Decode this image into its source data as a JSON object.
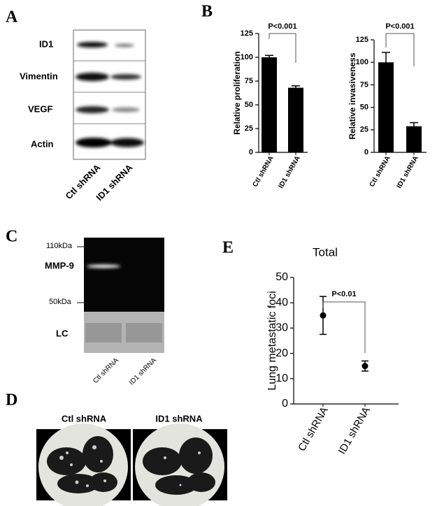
{
  "panel_labels": [
    "A",
    "B",
    "C",
    "D",
    "E"
  ],
  "blot_a": {
    "rows": [
      "ID1",
      "Vimentin",
      "VEGF",
      "Actin"
    ],
    "lanes": [
      "Ctl shRNA",
      "ID1 shRNA"
    ]
  },
  "blot_c": {
    "markers": [
      "110kDa",
      "50kDa"
    ],
    "bands": [
      "MMP-9",
      "LC"
    ],
    "lanes": [
      "Ctl shRNA",
      "ID1 shRNA"
    ]
  },
  "photos_d": {
    "lanes": [
      "Ctl shRNA",
      "ID1 shRNA"
    ]
  },
  "chart_data": [
    {
      "type": "bar",
      "ylabel": "Relative proliferation",
      "categories": [
        "Ctl shRNA",
        "ID1 shRNA"
      ],
      "values": [
        100,
        68
      ],
      "errors": [
        2,
        2
      ],
      "color": "#000000",
      "ylim": [
        0,
        125
      ],
      "yticks": [
        0,
        25,
        50,
        75,
        100,
        125
      ],
      "annotation": "P<0.001"
    },
    {
      "type": "bar",
      "ylabel": "Relative invasiveness",
      "categories": [
        "Ctl shRNA",
        "ID1 shRNA"
      ],
      "values": [
        100,
        29
      ],
      "errors": [
        11,
        4
      ],
      "color": "#000000",
      "ylim": [
        0,
        125
      ],
      "yticks": [
        0,
        25,
        50,
        75,
        100,
        125
      ],
      "annotation": "P<0.001"
    },
    {
      "type": "point",
      "title": "Total",
      "ylabel": "Lung metastatic foci",
      "categories": [
        "Ctl shRNA",
        "ID1 shRNA"
      ],
      "values": [
        35,
        15
      ],
      "errors": [
        7.5,
        2
      ],
      "color": "#000000",
      "ylim": [
        0,
        50
      ],
      "yticks": [
        0,
        10,
        20,
        30,
        40,
        50
      ],
      "annotation": "P<0.01"
    }
  ]
}
